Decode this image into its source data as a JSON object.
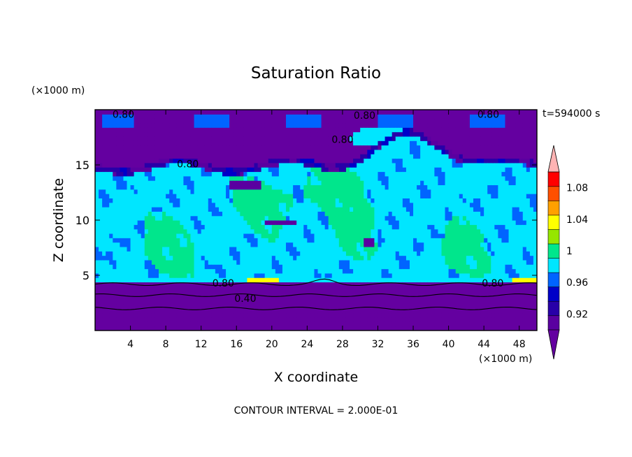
{
  "chart_data": {
    "type": "heatmap",
    "title": "Saturation Ratio",
    "xlabel": "X coordinate",
    "ylabel": "Z coordinate",
    "x_unit_label": "(×1000 m)",
    "y_unit_label": "(×1000 m)",
    "time_label": "t=594000 s",
    "footer": "CONTOUR INTERVAL = 2.000E-01",
    "xlim": [
      0,
      50
    ],
    "ylim": [
      0,
      20
    ],
    "x_ticks": [
      4,
      8,
      12,
      16,
      20,
      24,
      28,
      32,
      36,
      40,
      44,
      48
    ],
    "y_ticks": [
      5,
      10,
      15
    ],
    "colorbar": {
      "levels": [
        0.9,
        0.92,
        0.94,
        0.96,
        0.98,
        1.0,
        1.02,
        1.04,
        1.06,
        1.08,
        1.1
      ],
      "tick_labels": [
        "0.92",
        "0.96",
        "1",
        "1.04",
        "1.08"
      ],
      "tick_values": [
        0.92,
        0.96,
        1.0,
        1.04,
        1.08
      ],
      "colors": [
        "#5a00a0",
        "#2800a8",
        "#0000c8",
        "#0064ff",
        "#00e6ff",
        "#00e68c",
        "#96e600",
        "#ffff00",
        "#ffa000",
        "#ff5000",
        "#ff0000"
      ],
      "under_color": "#6400a0",
      "over_color": "#ffb4b4",
      "range": [
        0.9,
        1.1
      ]
    },
    "contour_labels": [
      {
        "text": "0.80",
        "x": 3.2,
        "y": 19.6
      },
      {
        "text": "0.80",
        "x": 30.5,
        "y": 19.5
      },
      {
        "text": "0.80",
        "x": 44.5,
        "y": 19.6
      },
      {
        "text": "0.80",
        "x": 28.0,
        "y": 17.3
      },
      {
        "text": "0.80",
        "x": 10.5,
        "y": 15.1
      },
      {
        "text": "0.80",
        "x": 14.5,
        "y": 4.3
      },
      {
        "text": "0.80",
        "x": 45.0,
        "y": 4.3
      },
      {
        "text": "0.40",
        "x": 17.0,
        "y": 2.9
      }
    ]
  }
}
